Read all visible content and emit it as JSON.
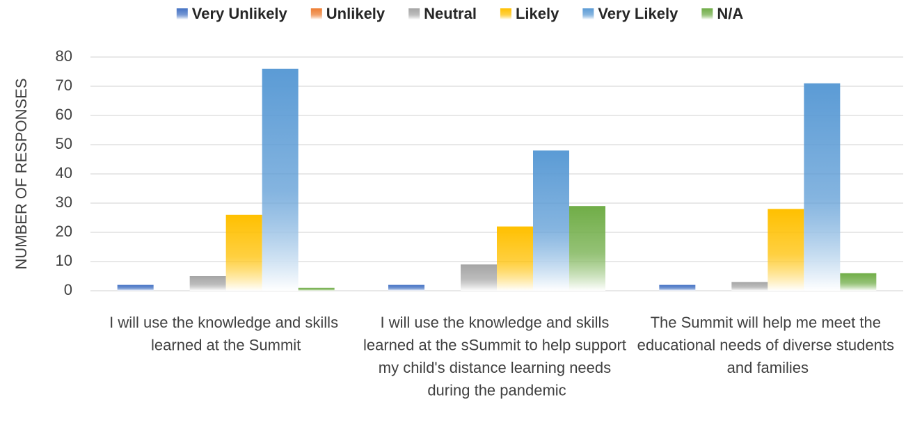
{
  "chart_data": {
    "type": "bar",
    "y_label": "NUMBER OF RESPONSES",
    "categories": [
      "I will use the knowledge and skills learned at the Summit",
      "I will use the knowledge and skills learned at the sSummit to help support my child's distance learning needs during the pandemic",
      "The Summit will help me meet the educational needs of diverse students and families"
    ],
    "series": [
      {
        "name": "Very Unlikely",
        "color": "#4472c4",
        "values": [
          2,
          2,
          2
        ]
      },
      {
        "name": "Unlikely",
        "color": "#ed7d31",
        "values": [
          0,
          0,
          0
        ]
      },
      {
        "name": "Neutral",
        "color": "#a5a5a5",
        "values": [
          5,
          9,
          3
        ]
      },
      {
        "name": "Likely",
        "color": "#ffc000",
        "values": [
          26,
          22,
          28
        ]
      },
      {
        "name": "Very Likely",
        "color": "#5b9bd5",
        "values": [
          76,
          48,
          71
        ]
      },
      {
        "name": "N/A",
        "color": "#70ad47",
        "values": [
          1,
          29,
          6
        ]
      }
    ],
    "ylim": [
      0,
      80
    ],
    "yticks": [
      0,
      10,
      20,
      30,
      40,
      50,
      60,
      70,
      80
    ],
    "grid": true,
    "legend": "top"
  }
}
